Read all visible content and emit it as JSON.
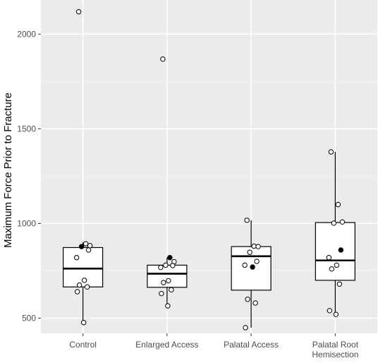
{
  "chart_data": {
    "type": "box",
    "ylabel": "Maximum Force Prior to Fracture",
    "xlabel": "",
    "ylim": [
      420,
      2180
    ],
    "y_ticks": [
      500,
      1000,
      1500,
      2000
    ],
    "grid": true,
    "background": "#ebebeb",
    "categories": [
      {
        "label_lines": [
          "Control"
        ]
      },
      {
        "label_lines": [
          "Enlarged Access"
        ]
      },
      {
        "label_lines": [
          "Palatal Access"
        ]
      },
      {
        "label_lines": [
          "Palatal Root",
          "Hemisection"
        ]
      }
    ],
    "boxes": [
      {
        "q1": 665,
        "median": 762,
        "q3": 873,
        "whisker_low": 477,
        "whisker_high": 900,
        "points": [
          2118,
          893,
          883,
          878,
          860,
          820,
          700,
          675,
          665,
          640,
          477
        ],
        "filled_points": [
          878
        ]
      },
      {
        "q1": 663,
        "median": 735,
        "q3": 780,
        "whisker_low": 565,
        "whisker_high": 820,
        "points": [
          1868,
          820,
          798,
          780,
          778,
          768,
          698,
          688,
          650,
          630,
          565
        ],
        "filled_points": [
          820
        ]
      },
      {
        "q1": 648,
        "median": 827,
        "q3": 878,
        "whisker_low": 450,
        "whisker_high": 1017,
        "points": [
          1017,
          880,
          878,
          848,
          800,
          780,
          770,
          600,
          580,
          450
        ],
        "filled_points": [
          770
        ]
      },
      {
        "q1": 700,
        "median": 805,
        "q3": 1005,
        "whisker_low": 520,
        "whisker_high": 1378,
        "points": [
          1378,
          1100,
          1008,
          1002,
          860,
          820,
          780,
          760,
          680,
          540,
          520
        ],
        "filled_points": [
          860
        ]
      }
    ]
  }
}
